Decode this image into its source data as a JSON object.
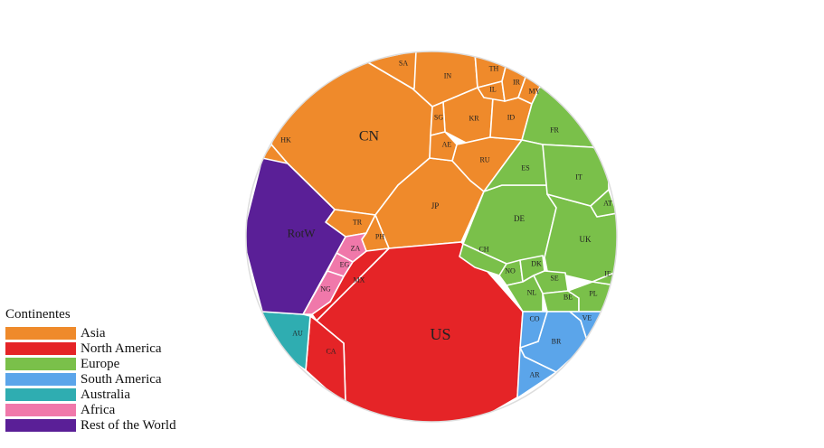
{
  "chart_data": {
    "type": "voronoi-treemap",
    "legend": {
      "title": "Continentes",
      "placement": "bottom-left",
      "entries": [
        {
          "name": "Asia",
          "color": "#ef8a2b"
        },
        {
          "name": "North America",
          "color": "#e52427"
        },
        {
          "name": "Europe",
          "color": "#7ac04a"
        },
        {
          "name": "South America",
          "color": "#5ba5ea"
        },
        {
          "name": "Australia",
          "color": "#2fadb1"
        },
        {
          "name": "Africa",
          "color": "#f078aa"
        },
        {
          "name": "Rest of the World",
          "color": "#5a1f97"
        }
      ]
    },
    "regions": [
      {
        "label": "CN",
        "continent": "Asia"
      },
      {
        "label": "JP",
        "continent": "Asia"
      },
      {
        "label": "IN",
        "continent": "Asia"
      },
      {
        "label": "KR",
        "continent": "Asia"
      },
      {
        "label": "RU",
        "continent": "Asia"
      },
      {
        "label": "SA",
        "continent": "Asia"
      },
      {
        "label": "TR",
        "continent": "Asia"
      },
      {
        "label": "ID",
        "continent": "Asia"
      },
      {
        "label": "TH",
        "continent": "Asia"
      },
      {
        "label": "IL",
        "continent": "Asia"
      },
      {
        "label": "IR",
        "continent": "Asia"
      },
      {
        "label": "MY",
        "continent": "Asia"
      },
      {
        "label": "SG",
        "continent": "Asia"
      },
      {
        "label": "AE",
        "continent": "Asia"
      },
      {
        "label": "HK",
        "continent": "Asia"
      },
      {
        "label": "PH",
        "continent": "Asia"
      },
      {
        "label": "US",
        "continent": "North America"
      },
      {
        "label": "CA",
        "continent": "North America"
      },
      {
        "label": "MX",
        "continent": "North America"
      },
      {
        "label": "DE",
        "continent": "Europe"
      },
      {
        "label": "UK",
        "continent": "Europe"
      },
      {
        "label": "FR",
        "continent": "Europe"
      },
      {
        "label": "ES",
        "continent": "Europe"
      },
      {
        "label": "IT",
        "continent": "Europe"
      },
      {
        "label": "AT",
        "continent": "Europe"
      },
      {
        "label": "CH",
        "continent": "Europe"
      },
      {
        "label": "NO",
        "continent": "Europe"
      },
      {
        "label": "DK",
        "continent": "Europe"
      },
      {
        "label": "SE",
        "continent": "Europe"
      },
      {
        "label": "NL",
        "continent": "Europe"
      },
      {
        "label": "BE",
        "continent": "Europe"
      },
      {
        "label": "PL",
        "continent": "Europe"
      },
      {
        "label": "IE",
        "continent": "Europe"
      },
      {
        "label": "BR",
        "continent": "South America"
      },
      {
        "label": "CO",
        "continent": "South America"
      },
      {
        "label": "VE",
        "continent": "South America"
      },
      {
        "label": "AR",
        "continent": "South America"
      },
      {
        "label": "AU",
        "continent": "Australia"
      },
      {
        "label": "ZA",
        "continent": "Africa"
      },
      {
        "label": "EG",
        "continent": "Africa"
      },
      {
        "label": "NG",
        "continent": "Africa"
      },
      {
        "label": "RotW",
        "continent": "Rest of the World"
      }
    ]
  }
}
